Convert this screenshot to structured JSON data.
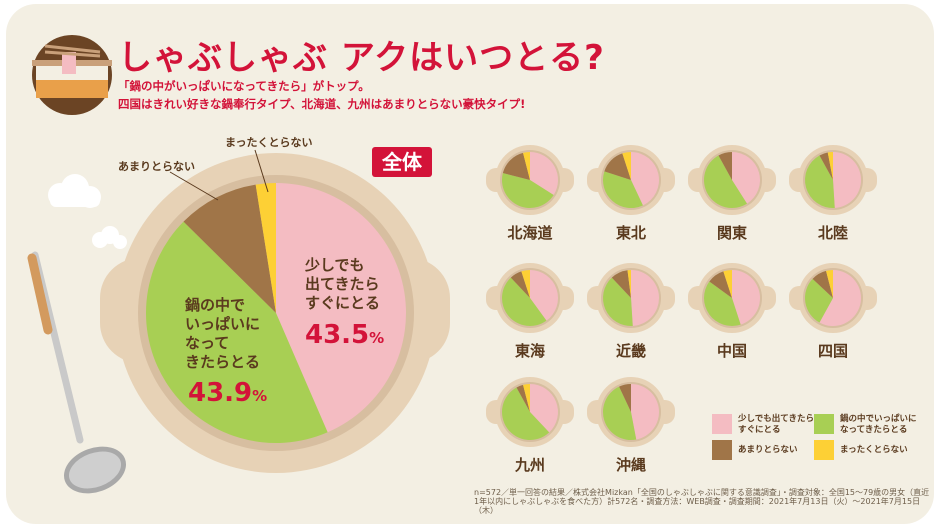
{
  "header": {
    "title": "しゃぶしゃぶ アクはいつとる?",
    "subtitle_lines": [
      "「鍋の中がいっぱいになってきたら」がトップ。",
      "四国はきれい好きな鍋奉行タイプ、北海道、九州はあまりとらない豪快タイプ!"
    ]
  },
  "colors": {
    "pink": "#f4bcc2",
    "green": "#a8cf54",
    "brown": "#a07548",
    "yellow": "#fdd035",
    "accent": "#d31339",
    "text": "#5a3a1e"
  },
  "chart_data": [
    {
      "type": "pie",
      "title": "全体",
      "categories": [
        "少しでも出てきたらすぐにとる",
        "鍋の中でいっぱいになってきたらとる",
        "あまりとらない",
        "まったくとらない"
      ],
      "values": [
        43.5,
        43.9,
        10.1,
        2.5
      ],
      "labels": {
        "pink": "少しでも\n出てきたら\nすぐにとる",
        "pink_pct": "43.5",
        "green": "鍋の中で\nいっぱいに\nなって\nきたらとる",
        "green_pct": "43.9",
        "pct_unit": "%",
        "brown": "あまりとらない",
        "yellow": "まったくとらない"
      }
    },
    {
      "type": "pie",
      "categories": [
        "少しでも出てきたらすぐにとる",
        "鍋の中でいっぱいになってきたらとる",
        "あまりとらない",
        "まったくとらない"
      ],
      "legend_position": "bottom-right",
      "regions": [
        {
          "name": "北海道",
          "values": [
            34,
            45,
            17,
            4
          ]
        },
        {
          "name": "東北",
          "values": [
            43,
            37,
            15,
            5
          ]
        },
        {
          "name": "関東",
          "values": [
            41,
            51,
            8,
            0
          ]
        },
        {
          "name": "北陸",
          "values": [
            49,
            43,
            5,
            3
          ]
        },
        {
          "name": "東海",
          "values": [
            40,
            48,
            7,
            5
          ]
        },
        {
          "name": "近畿",
          "values": [
            49,
            39,
            10,
            2
          ]
        },
        {
          "name": "中国",
          "values": [
            45,
            40,
            10,
            5
          ]
        },
        {
          "name": "四国",
          "values": [
            58,
            29,
            9,
            4
          ]
        },
        {
          "name": "九州",
          "values": [
            38,
            54,
            4,
            4
          ]
        },
        {
          "name": "沖縄",
          "values": [
            47,
            46,
            7,
            0
          ]
        }
      ]
    }
  ],
  "legend": [
    {
      "label": "少しでも出てきたら\nすぐにとる",
      "color": "#f4bcc2"
    },
    {
      "label": "鍋の中でいっぱいに\nなってきたらとる",
      "color": "#a8cf54"
    },
    {
      "label": "あまりとらない",
      "color": "#a07548"
    },
    {
      "label": "まったくとらない",
      "color": "#fdd035"
    }
  ],
  "footnote": "n=572／単一回答の結果／株式会社Mizkan「全国のしゃぶしゃぶに関する意識調査」・調査対象：全国15～79歳の男女（直近1年以内にしゃぶしゃぶを食べた方）計572名・調査方法：WEB調査・調査期間：2021年7月13日（火）～2021年7月15日（木）"
}
